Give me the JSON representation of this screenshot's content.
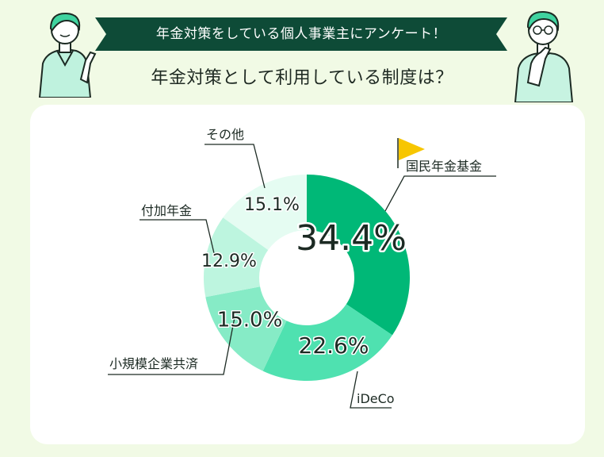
{
  "header": {
    "banner_text": "年金対策をしている個人事業主にアンケート！",
    "subtitle": "年金対策として利用している制度は？"
  },
  "colors": {
    "background": "#f1fae5",
    "banner": "#0e4b37",
    "slice_colors": [
      "#00b877",
      "#4fe1b0",
      "#86ebc6",
      "#bdf5df",
      "#e5fcf2"
    ],
    "flag": "#f7c600",
    "text_dark": "#1c2a23"
  },
  "icons": {
    "flag": "flag-icon"
  },
  "chart_data": {
    "type": "pie",
    "donut": true,
    "unit": "%",
    "title": "年金対策として利用している制度は？",
    "slices": [
      {
        "label": "国民年金基金",
        "value": 34.4,
        "display": "34.4%"
      },
      {
        "label": "iDeCo",
        "value": 22.6,
        "display": "22.6%"
      },
      {
        "label": "小規模企業共済",
        "value": 15.0,
        "display": "15.0%"
      },
      {
        "label": "付加年金",
        "value": 12.9,
        "display": "12.9%"
      },
      {
        "label": "その他",
        "value": 15.1,
        "display": "15.1%"
      }
    ],
    "highlight": "国民年金基金"
  }
}
